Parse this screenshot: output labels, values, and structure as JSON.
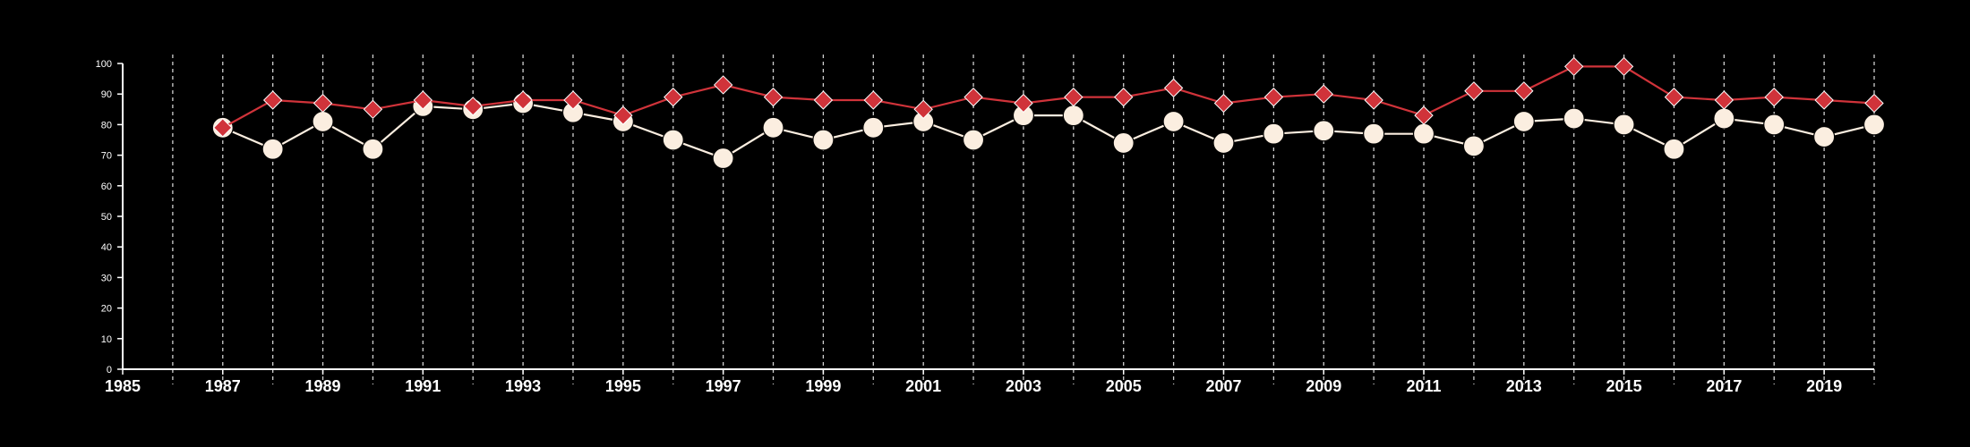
{
  "chart_data": {
    "type": "line",
    "title": "",
    "xlabel": "",
    "ylabel": "",
    "xlim": [
      1985,
      2020
    ],
    "ylim": [
      0,
      100
    ],
    "x_ticks": [
      1985,
      1987,
      1989,
      1991,
      1993,
      1995,
      1997,
      1999,
      2001,
      2003,
      2005,
      2007,
      2009,
      2011,
      2013,
      2015,
      2017,
      2019
    ],
    "y_ticks": [
      0,
      10,
      20,
      30,
      40,
      50,
      60,
      70,
      80,
      90,
      100
    ],
    "vertical_grid": "dashed, every year",
    "horizontal_grid": false,
    "legend": "none",
    "x": [
      1987,
      1988,
      1989,
      1990,
      1991,
      1992,
      1993,
      1994,
      1995,
      1996,
      1997,
      1998,
      1999,
      2000,
      2001,
      2002,
      2003,
      2004,
      2005,
      2006,
      2007,
      2008,
      2009,
      2010,
      2011,
      2012,
      2013,
      2014,
      2015,
      2016,
      2017,
      2018,
      2019,
      2020
    ],
    "series": [
      {
        "marker": "diamond",
        "color": "#d0333a",
        "values": [
          79,
          88,
          87,
          85,
          88,
          86,
          88,
          88,
          83,
          89,
          93,
          89,
          88,
          88,
          85,
          89,
          87,
          89,
          89,
          92,
          87,
          89,
          90,
          88,
          83,
          91,
          91,
          99,
          99,
          89,
          88,
          89,
          88,
          87
        ]
      },
      {
        "marker": "circle",
        "color": "#fbeee0",
        "values": [
          79,
          72,
          81,
          72,
          86,
          85,
          87,
          84,
          81,
          75,
          69,
          79,
          75,
          79,
          81,
          75,
          83,
          83,
          74,
          81,
          74,
          77,
          78,
          77,
          77,
          73,
          81,
          82,
          80,
          72,
          82,
          80,
          76,
          80
        ]
      }
    ]
  }
}
